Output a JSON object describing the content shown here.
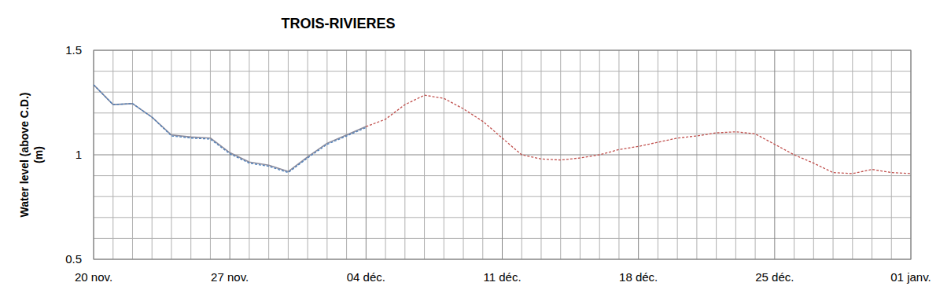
{
  "chart_data": {
    "type": "line",
    "title": "TROIS-RIVIERES",
    "y_label": [
      "Water level (above C.D.)",
      "(m)"
    ],
    "x": [
      0,
      1,
      2,
      3,
      4,
      5,
      6,
      7,
      8,
      9,
      10,
      11,
      12,
      13,
      14,
      15,
      16,
      17,
      18,
      19,
      20,
      21,
      22,
      23,
      24,
      25,
      26,
      27,
      28,
      29,
      30,
      31,
      32,
      33,
      34,
      35,
      36,
      37,
      38,
      39,
      40,
      41,
      42
    ],
    "xlim": [
      0,
      42
    ],
    "xticks": [
      {
        "value": 0,
        "label": "20 nov."
      },
      {
        "value": 7,
        "label": "27 nov."
      },
      {
        "value": 14,
        "label": "04 déc."
      },
      {
        "value": 21,
        "label": "11 déc."
      },
      {
        "value": 28,
        "label": "18 déc."
      },
      {
        "value": 35,
        "label": "25 déc."
      },
      {
        "value": 42,
        "label": "01 janv."
      }
    ],
    "ylim": [
      0.5,
      1.5
    ],
    "yticks": [
      0.5,
      1,
      1.5
    ],
    "grid": true,
    "series": [
      {
        "color": "#8c8c9c",
        "line_style": "solid",
        "values": [
          1.335,
          1.24,
          1.245,
          1.18,
          1.095,
          1.085,
          1.08,
          1.01,
          0.965,
          0.95,
          0.92,
          0.99,
          1.055,
          1.095,
          1.135,
          null,
          null,
          null,
          null,
          null,
          null,
          null,
          null,
          null,
          null,
          null,
          null,
          null,
          null,
          null,
          null,
          null,
          null,
          null,
          null,
          null,
          null,
          null,
          null,
          null,
          null,
          null,
          null
        ]
      },
      {
        "color": "#4a7ebb",
        "line_style": "dashed",
        "values": [
          1.335,
          1.24,
          1.245,
          1.18,
          1.09,
          1.08,
          1.075,
          1.005,
          0.96,
          0.945,
          0.915,
          0.985,
          1.05,
          1.09,
          1.13,
          null,
          null,
          null,
          null,
          null,
          null,
          null,
          null,
          null,
          null,
          null,
          null,
          null,
          null,
          null,
          null,
          null,
          null,
          null,
          null,
          null,
          null,
          null,
          null,
          null,
          null,
          null,
          null
        ]
      },
      {
        "color": "#c0504d",
        "line_style": "dashed",
        "values": [
          null,
          null,
          null,
          null,
          null,
          null,
          null,
          null,
          null,
          null,
          null,
          null,
          null,
          null,
          1.135,
          1.17,
          1.24,
          1.285,
          1.27,
          1.22,
          1.16,
          1.08,
          1.0,
          0.98,
          0.975,
          0.985,
          1.0,
          1.025,
          1.04,
          1.06,
          1.08,
          1.09,
          1.105,
          1.11,
          1.1,
          1.05,
          1.0,
          0.96,
          0.915,
          0.91,
          0.93,
          0.915,
          0.91
        ]
      }
    ]
  }
}
